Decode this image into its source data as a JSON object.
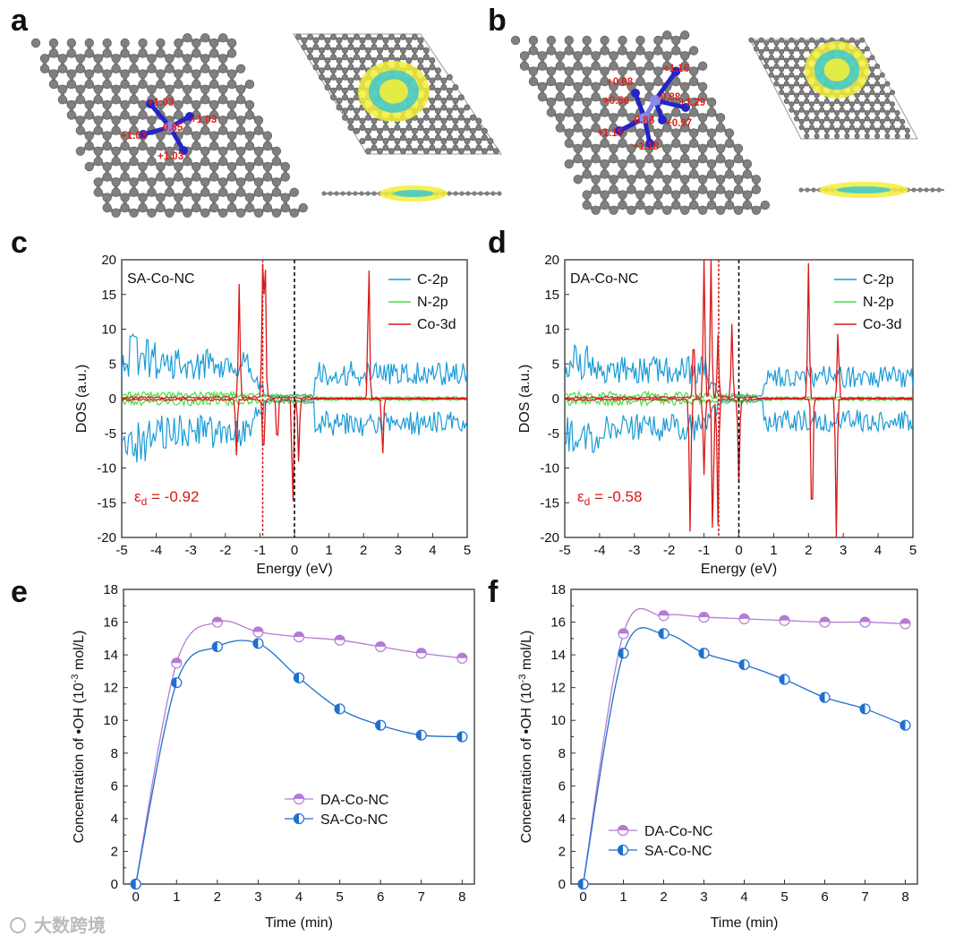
{
  "panel_labels": [
    "a",
    "b",
    "c",
    "d",
    "e",
    "f"
  ],
  "structures": [
    {
      "panel": "a",
      "name": "SA-Co-NC",
      "charges": [
        "+1.03",
        "+1.03",
        "+1.03",
        "+1.03",
        "-0.85"
      ]
    },
    {
      "panel": "b",
      "name": "DA-Co-NC",
      "charges": [
        "+1.16",
        "+0.68",
        "+0.56",
        "-0.88",
        "+1.29",
        "-0.86",
        "+0.97",
        "+1.15",
        "+1.18"
      ]
    }
  ],
  "colors": {
    "c2p": "#1a9bd7",
    "n2p": "#44e044",
    "co3d": "#d81818",
    "da": "#b57ad6",
    "sa": "#1e6fd0",
    "charge": "#e0201c",
    "carbon": "#7a7a7a",
    "nitrogen": "#2424c8"
  },
  "chart_data": [
    {
      "panel": "c",
      "type": "line",
      "sample": "SA-Co-NC",
      "xlabel": "Energy (eV)",
      "ylabel": "DOS (a.u.)",
      "xlim": [
        -5,
        5
      ],
      "ylim": [
        -20,
        20
      ],
      "xticks": [
        "-5",
        "-4",
        "-3",
        "-2",
        "-1",
        "0",
        "1",
        "2",
        "3",
        "4",
        "5"
      ],
      "yticks": [
        "20",
        "15",
        "10",
        "5",
        "0",
        "-5",
        "-10",
        "-15",
        "-20"
      ],
      "legend": [
        "C-2p",
        "N-2p",
        "Co-3d"
      ],
      "legend_position": "top-right",
      "annotation": {
        "text": "ε",
        "sub": "d",
        "value": " = -0.92"
      },
      "d_band_center": -0.92,
      "fermi": 0,
      "co3d_peaks": [
        [
          -1.6,
          16.5
        ],
        [
          -0.92,
          19
        ],
        [
          -0.85,
          20
        ],
        [
          2.15,
          20
        ],
        [
          -1.68,
          -8
        ],
        [
          -0.9,
          -9
        ],
        [
          -0.5,
          -7
        ],
        [
          -0.05,
          -16
        ],
        [
          0.12,
          -9
        ],
        [
          2.55,
          -8.5
        ]
      ],
      "c2p_envelope": {
        "valence": 7,
        "conduction": 4.5,
        "gap": [
          -1.2,
          0.6
        ]
      }
    },
    {
      "panel": "d",
      "type": "line",
      "sample": "DA-Co-NC",
      "xlabel": "Energy (eV)",
      "ylabel": "DOS (a.u.)",
      "xlim": [
        -5,
        5
      ],
      "ylim": [
        -20,
        20
      ],
      "xticks": [
        "-5",
        "-4",
        "-3",
        "-2",
        "-1",
        "0",
        "1",
        "2",
        "3",
        "4",
        "5"
      ],
      "yticks": [
        "20",
        "15",
        "10",
        "5",
        "0",
        "-5",
        "-10",
        "-15",
        "-20"
      ],
      "legend": [
        "C-2p",
        "N-2p",
        "Co-3d"
      ],
      "legend_position": "top-right",
      "annotation": {
        "text": "ε",
        "sub": "d",
        "value": " = -0.58"
      },
      "d_band_center": -0.58,
      "fermi": 0,
      "co3d_peaks": [
        [
          -1.3,
          9.5
        ],
        [
          -1.0,
          20
        ],
        [
          -0.8,
          20
        ],
        [
          -0.6,
          9
        ],
        [
          -0.2,
          10.5
        ],
        [
          2.0,
          19.5
        ],
        [
          2.85,
          10
        ],
        [
          -1.4,
          -19
        ],
        [
          -1.0,
          -11
        ],
        [
          -0.75,
          -20
        ],
        [
          -0.6,
          -18
        ],
        [
          0.0,
          -12
        ],
        [
          2.1,
          -20
        ],
        [
          2.8,
          -20
        ]
      ],
      "c2p_envelope": {
        "valence": 6,
        "conduction": 4,
        "gap": [
          -0.9,
          0.7
        ]
      }
    },
    {
      "panel": "e",
      "type": "line",
      "xlabel": "Time (min)",
      "ylabel": "Concentration of •OH (10",
      "ylabel_sup": "-3",
      "ylabel_end": " mol/L)",
      "x": [
        0,
        1,
        2,
        3,
        4,
        5,
        6,
        7,
        8
      ],
      "xlim": [
        -0.3,
        8.3
      ],
      "ylim": [
        0,
        18
      ],
      "xticks": [
        "0",
        "1",
        "2",
        "3",
        "4",
        "5",
        "6",
        "7",
        "8"
      ],
      "yticks": [
        "0",
        "2",
        "4",
        "6",
        "8",
        "10",
        "12",
        "14",
        "16",
        "18"
      ],
      "legend_position": "lower-center",
      "series": [
        {
          "name": "DA-Co-NC",
          "values": [
            0,
            13.5,
            16.0,
            15.4,
            15.1,
            14.9,
            14.5,
            14.1,
            13.8
          ]
        },
        {
          "name": "SA-Co-NC",
          "values": [
            0,
            12.3,
            14.5,
            14.7,
            12.6,
            10.7,
            9.7,
            9.1,
            9.0
          ]
        }
      ]
    },
    {
      "panel": "f",
      "type": "line",
      "xlabel": "Time (min)",
      "ylabel": "Concentration of •OH (10",
      "ylabel_sup": "-3",
      "ylabel_end": " mol/L)",
      "x": [
        0,
        1,
        2,
        3,
        4,
        5,
        6,
        7,
        8
      ],
      "xlim": [
        -0.3,
        8.3
      ],
      "ylim": [
        0,
        18
      ],
      "xticks": [
        "0",
        "1",
        "2",
        "3",
        "4",
        "5",
        "6",
        "7",
        "8"
      ],
      "yticks": [
        "0",
        "2",
        "4",
        "6",
        "8",
        "10",
        "12",
        "14",
        "16",
        "18"
      ],
      "legend_position": "lower-left",
      "series": [
        {
          "name": "DA-Co-NC",
          "values": [
            0,
            15.3,
            16.4,
            16.3,
            16.2,
            16.1,
            16.0,
            16.0,
            15.9
          ]
        },
        {
          "name": "SA-Co-NC",
          "values": [
            0,
            14.1,
            15.3,
            14.1,
            13.4,
            12.5,
            11.4,
            10.7,
            9.7
          ]
        }
      ]
    }
  ],
  "watermark": "大数跨境"
}
